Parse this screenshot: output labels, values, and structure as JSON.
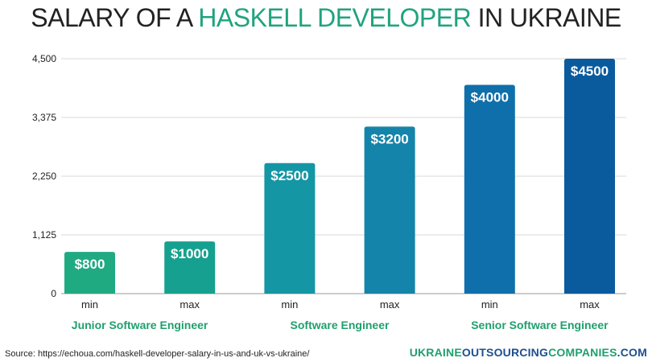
{
  "header": {
    "title_part1": "SALARY OF A ",
    "title_part2": "HASKELL DEVELOPER",
    "title_part3": " IN UKRAINE"
  },
  "chart_data": {
    "type": "bar",
    "categories": [
      "min",
      "max",
      "min",
      "max",
      "min",
      "max"
    ],
    "groups": [
      "Junior Software Engineer",
      "Software Engineer",
      "Senior Software Engineer"
    ],
    "values": [
      800,
      1000,
      2500,
      3200,
      4000,
      4500
    ],
    "data_labels": [
      "$800",
      "$1000",
      "$2500",
      "$3200",
      "$4000",
      "$4500"
    ],
    "ylim": [
      0,
      4500
    ],
    "yticks": [
      0,
      1125,
      2250,
      3375,
      4500
    ],
    "ytick_labels": [
      "0",
      "1,125",
      "2,250",
      "3,375",
      "4,500"
    ],
    "grid": true,
    "bar_colors": [
      "#1faa82",
      "#16a08f",
      "#1496a4",
      "#1484aa",
      "#0f6fab",
      "#0a5a9e"
    ],
    "group_label_color": "#1f9f6e"
  },
  "footer": {
    "source": "Source: https://echoua.com/haskell-developer-salary-in-us-and-uk-vs-ukraine/",
    "brand_part1": "UKRAINE",
    "brand_part2": "OUTSOURCING",
    "brand_part3": "COMPANIES",
    "brand_part4": ".COM"
  }
}
